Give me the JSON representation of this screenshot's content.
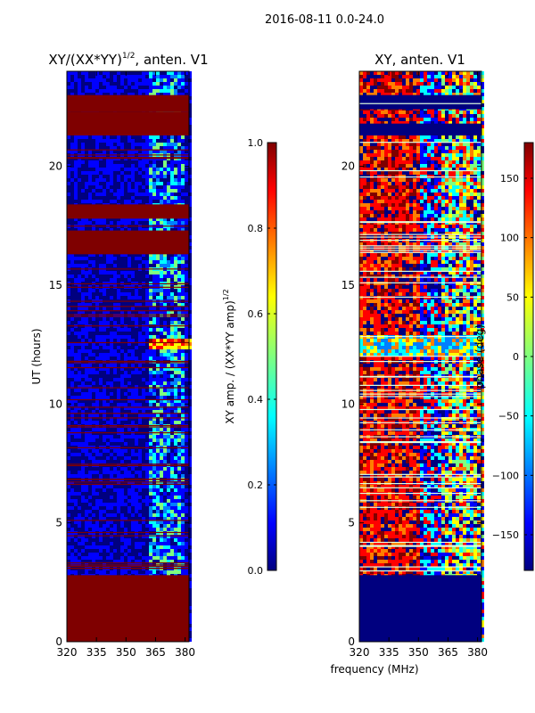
{
  "suptitle": "2016-08-11 0.0-24.0",
  "shared_xlabel": "frequency (MHz)",
  "colors": {
    "background_red": "#7f0000",
    "background_blue": "#00007f",
    "jet": [
      "#00007f",
      "#0000ff",
      "#007fff",
      "#00ffff",
      "#7fff7f",
      "#ffff00",
      "#ff7f00",
      "#ff0000",
      "#7f0000"
    ]
  },
  "chart_data": [
    {
      "type": "heatmap",
      "title_main": "XY/(XX*YY)",
      "title_sup": "1/2",
      "title_tail": ", anten. V1",
      "ylabel": "UT (hours)",
      "xlim": [
        320,
        382
      ],
      "ylim": [
        0,
        24
      ],
      "xticks": [
        320,
        335,
        350,
        365,
        380
      ],
      "yticks": [
        0,
        5,
        10,
        15,
        20
      ],
      "colorbar": {
        "label_main": "XY amp. / (XX*YY amp)",
        "label_sup": "1/2",
        "range": [
          0.0,
          1.0
        ],
        "ticks": [
          0.0,
          0.2,
          0.4,
          0.6,
          0.8,
          1.0
        ],
        "tick_labels": [
          "0.0",
          "0.2",
          "0.4",
          "0.6",
          "0.8",
          "1.0"
        ]
      },
      "flagged_hours": [
        [
          0,
          2.8
        ],
        [
          16.3,
          17.3
        ],
        [
          17.8,
          18.4
        ],
        [
          21.3,
          22.3
        ],
        [
          22.3,
          23.0
        ]
      ],
      "bright_hours": [
        12.3,
        12.8
      ]
    },
    {
      "type": "heatmap",
      "title_main": "XY, anten. V1",
      "title_sup": "",
      "title_tail": "",
      "ylabel": "",
      "xlim": [
        320,
        382
      ],
      "ylim": [
        0,
        24
      ],
      "xticks": [
        320,
        335,
        350,
        365,
        380
      ],
      "yticks": [
        0,
        5,
        10,
        15,
        20
      ],
      "colorbar": {
        "label_main": "phase (deg)",
        "label_sup": "",
        "range": [
          -180,
          180
        ],
        "ticks": [
          -150,
          -100,
          -50,
          0,
          50,
          100,
          150
        ],
        "tick_labels": [
          "−150",
          "−100",
          "−50",
          "0",
          "50",
          "100",
          "150"
        ]
      },
      "flagged_hours": [
        [
          0,
          2.8
        ],
        [
          21.3,
          21.8
        ],
        [
          22.4,
          23.0
        ]
      ],
      "bright_hours": [
        12.0,
        13.0
      ]
    }
  ]
}
